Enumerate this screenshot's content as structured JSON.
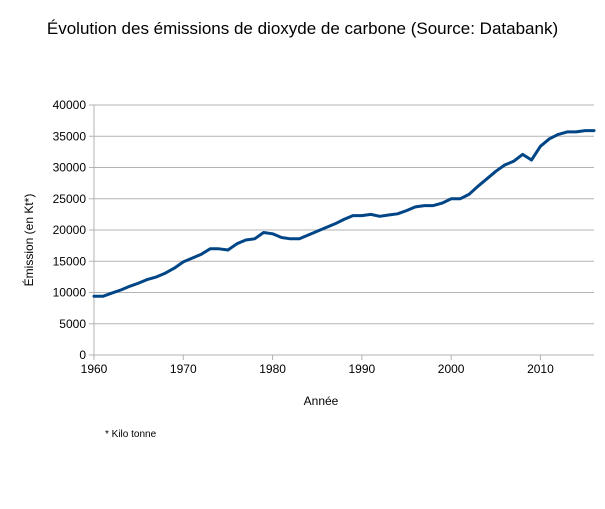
{
  "chart_data": {
    "type": "line",
    "title": "Évolution des émissions de dioxyde de carbone (Source: Databank)",
    "xlabel": "Année",
    "ylabel": "Émission (en Kt*)",
    "footnote": "* Kilo tonne",
    "xlim": [
      1960,
      2016
    ],
    "ylim": [
      0,
      40000
    ],
    "grid": true,
    "legend": "none",
    "line_color": "#004586",
    "x_ticks": [
      1960,
      1970,
      1980,
      1990,
      2000,
      2010
    ],
    "y_ticks": [
      0,
      5000,
      10000,
      15000,
      20000,
      25000,
      30000,
      35000,
      40000
    ],
    "series": [
      {
        "x": [
          1960,
          1961,
          1962,
          1963,
          1964,
          1965,
          1966,
          1967,
          1968,
          1969,
          1970,
          1971,
          1972,
          1973,
          1974,
          1975,
          1976,
          1977,
          1978,
          1979,
          1980,
          1981,
          1982,
          1983,
          1984,
          1985,
          1986,
          1987,
          1988,
          1989,
          1990,
          1991,
          1992,
          1993,
          1994,
          1995,
          1996,
          1997,
          1998,
          1999,
          2000,
          2001,
          2002,
          2003,
          2004,
          2005,
          2006,
          2007,
          2008,
          2009,
          2010,
          2011,
          2012,
          2013,
          2014,
          2015,
          2016
        ],
        "y": [
          9400,
          9400,
          9900,
          10400,
          11000,
          11500,
          12100,
          12500,
          13100,
          13900,
          14900,
          15500,
          16100,
          17000,
          17000,
          16800,
          17800,
          18400,
          18600,
          19600,
          19400,
          18800,
          18600,
          18600,
          19200,
          19800,
          20400,
          21000,
          21700,
          22300,
          22300,
          22500,
          22200,
          22400,
          22600,
          23100,
          23700,
          23900,
          23900,
          24300,
          25000,
          25000,
          25700,
          27000,
          28200,
          29400,
          30400,
          31000,
          32100,
          31200,
          33400,
          34600,
          35300,
          35700,
          35700,
          35900,
          35900
        ]
      }
    ]
  }
}
